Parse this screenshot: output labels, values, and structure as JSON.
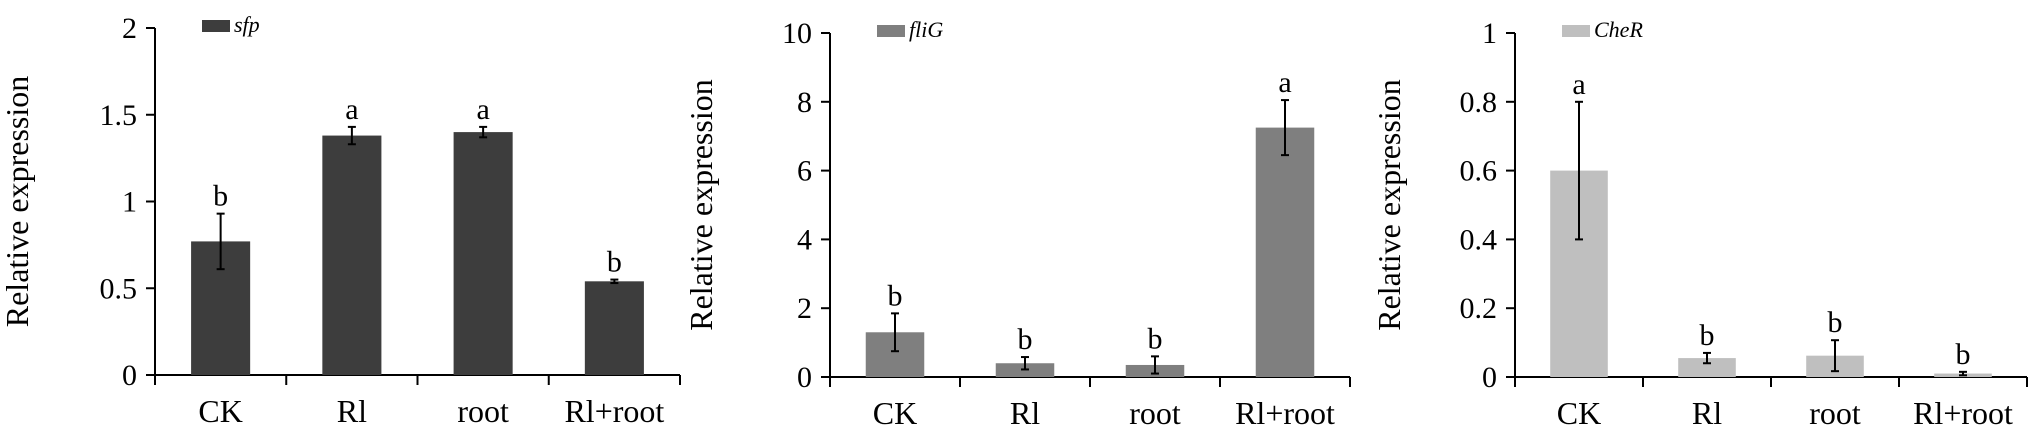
{
  "chart_data": [
    {
      "type": "bar",
      "ylabel": "Relative expression",
      "ylim": [
        0,
        2
      ],
      "yticks": [
        "0",
        "0.5",
        "1",
        "1.5",
        "2"
      ],
      "categories": [
        "CK",
        "Rl",
        "root",
        "Rl+root"
      ],
      "series": [
        {
          "name": "sfp",
          "color": "#3d3d3d",
          "values": [
            0.77,
            1.38,
            1.4,
            0.54
          ],
          "errors": [
            0.16,
            0.05,
            0.03,
            0.01
          ],
          "letters": [
            "b",
            "a",
            "a",
            "b"
          ]
        }
      ],
      "legend": "top-left",
      "grid": false
    },
    {
      "type": "bar",
      "ylabel": "Relative expression",
      "ylim": [
        0,
        10
      ],
      "yticks": [
        "0",
        "2",
        "4",
        "6",
        "8",
        "10"
      ],
      "categories": [
        "CK",
        "Rl",
        "root",
        "Rl+root"
      ],
      "series": [
        {
          "name": "fliG",
          "color": "#7f7f7f",
          "values": [
            1.3,
            0.4,
            0.35,
            7.25
          ],
          "errors": [
            0.55,
            0.18,
            0.25,
            0.8
          ],
          "letters": [
            "b",
            "b",
            "b",
            "a"
          ]
        }
      ],
      "legend": "top-left",
      "grid": false
    },
    {
      "type": "bar",
      "ylabel": "Relative expression",
      "ylim": [
        0,
        1
      ],
      "yticks": [
        "0",
        "0.2",
        "0.4",
        "0.6",
        "0.8",
        "1"
      ],
      "categories": [
        "CK",
        "Rl",
        "root",
        "Rl+root"
      ],
      "series": [
        {
          "name": "CheR",
          "color": "#bfbfbf",
          "values": [
            0.6,
            0.055,
            0.062,
            0.01
          ],
          "errors": [
            0.2,
            0.015,
            0.045,
            0.005
          ],
          "letters": [
            "a",
            "b",
            "b",
            "b"
          ]
        }
      ],
      "legend": "top-left",
      "grid": false
    }
  ]
}
